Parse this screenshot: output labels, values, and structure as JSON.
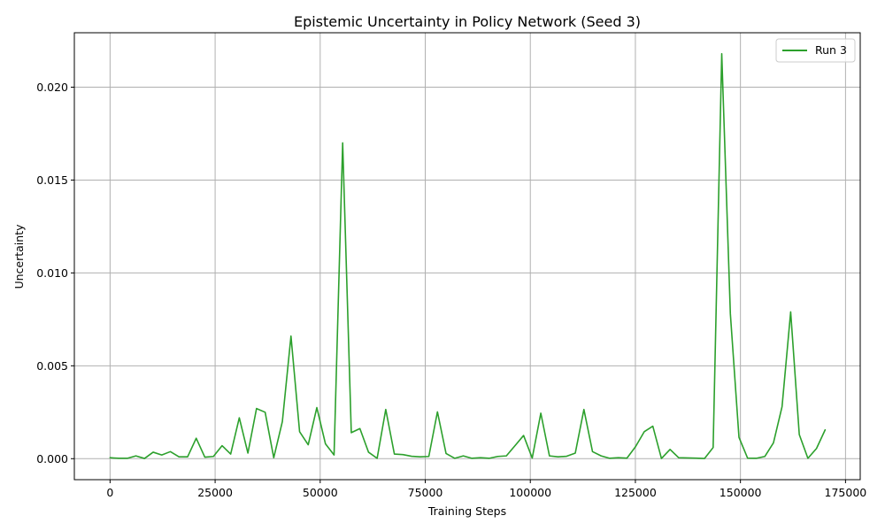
{
  "chart_data": {
    "type": "line",
    "title": "Epistemic Uncertainty in Policy Network (Seed 3)",
    "xlabel": "Training Steps",
    "ylabel": "Uncertainty",
    "xlim": [
      -8500,
      178500
    ],
    "ylim": [
      -0.00113,
      0.02293
    ],
    "xticks": [
      0,
      25000,
      50000,
      75000,
      100000,
      125000,
      150000,
      175000
    ],
    "xtick_labels": [
      "0",
      "25000",
      "50000",
      "75000",
      "100000",
      "125000",
      "150000",
      "175000"
    ],
    "yticks": [
      0.0,
      0.005,
      0.01,
      0.015,
      0.02
    ],
    "ytick_labels": [
      "0.000",
      "0.005",
      "0.010",
      "0.015",
      "0.020"
    ],
    "grid": true,
    "legend_position": "top-right",
    "series": [
      {
        "name": "Run 3",
        "color": "#2ca02c",
        "x": [
          0,
          2050,
          4100,
          6150,
          8200,
          10250,
          12300,
          14350,
          16400,
          18450,
          20500,
          22550,
          24600,
          26650,
          28700,
          30750,
          32800,
          34850,
          36900,
          38950,
          41000,
          43050,
          45100,
          47150,
          49200,
          51250,
          53300,
          55350,
          57400,
          59450,
          61500,
          63550,
          65600,
          67650,
          69700,
          71750,
          73800,
          75850,
          77900,
          79950,
          82000,
          84050,
          86100,
          88150,
          90200,
          92250,
          94300,
          96350,
          98400,
          100450,
          102500,
          104550,
          106600,
          108650,
          110700,
          112750,
          114800,
          116850,
          118900,
          120950,
          123000,
          125050,
          127100,
          129150,
          131200,
          133250,
          135300,
          137350,
          139400,
          141450,
          143500,
          145550,
          147600,
          149650,
          151700,
          153750,
          155800,
          157850,
          159900,
          161950,
          164000,
          166050,
          168100,
          170150
        ],
        "y": [
          5e-05,
          2e-05,
          2e-05,
          0.00015,
          1e-05,
          0.00035,
          0.0002,
          0.00038,
          0.0001,
          0.0001,
          0.0011,
          8e-05,
          0.00012,
          0.0007,
          0.00025,
          0.0022,
          0.0003,
          0.0027,
          0.0025,
          5e-05,
          0.002,
          0.0066,
          0.00145,
          0.00075,
          0.00275,
          0.0008,
          0.0002,
          0.017,
          0.0014,
          0.00162,
          0.00035,
          2e-05,
          0.00265,
          0.00025,
          0.00022,
          0.00013,
          0.0001,
          0.00012,
          0.00252,
          0.00028,
          2e-05,
          0.00015,
          2e-05,
          5e-05,
          2e-05,
          0.00012,
          0.00015,
          0.0007,
          0.00125,
          3e-05,
          0.00245,
          0.00015,
          0.0001,
          0.00013,
          0.0003,
          0.00265,
          0.00038,
          0.00015,
          2e-05,
          5e-05,
          3e-05,
          0.00065,
          0.00145,
          0.00175,
          1e-05,
          0.0005,
          5e-05,
          4e-05,
          3e-05,
          1e-05,
          0.0006,
          0.0218,
          0.0078,
          0.00115,
          3e-05,
          2e-05,
          0.00012,
          0.00085,
          0.0028,
          0.0079,
          0.0013,
          2e-05,
          0.00055,
          0.00155
        ]
      }
    ]
  }
}
